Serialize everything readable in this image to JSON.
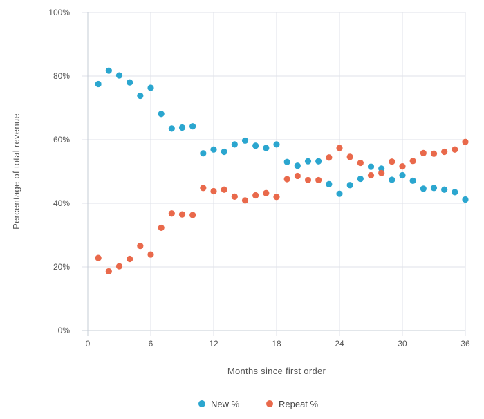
{
  "chart_data": {
    "type": "scatter",
    "title": "",
    "xlabel": "Months since first order",
    "ylabel": "Percentage of total revenue",
    "xlim": [
      0,
      36
    ],
    "ylim": [
      0,
      100
    ],
    "x_ticks": [
      0,
      6,
      12,
      18,
      24,
      30,
      36
    ],
    "y_ticks": [
      0,
      20,
      40,
      60,
      80,
      100
    ],
    "y_tick_labels": [
      "0%",
      "20%",
      "40%",
      "60%",
      "80%",
      "100%"
    ],
    "legend_position": "bottom",
    "series": [
      {
        "name": "New %",
        "color": "#2ba6cf",
        "x": [
          1,
          2,
          3,
          4,
          5,
          6,
          7,
          8,
          9,
          10,
          11,
          12,
          13,
          14,
          15,
          16,
          17,
          18,
          19,
          20,
          21,
          22,
          23,
          24,
          25,
          26,
          27,
          28,
          29,
          30,
          31,
          32,
          33,
          34,
          35,
          36
        ],
        "values": [
          77.5,
          81.7,
          80.2,
          78,
          73.8,
          76.3,
          68.1,
          63.5,
          63.8,
          64.2,
          55.7,
          56.9,
          56.2,
          58.5,
          59.7,
          58.1,
          57.4,
          58.5,
          53,
          51.8,
          53.2,
          53.2,
          46,
          43,
          45.7,
          47.7,
          51.5,
          50.9,
          47.4,
          48.8,
          47.1,
          44.6,
          44.8,
          44.3,
          43.5,
          41.2
        ]
      },
      {
        "name": "Repeat %",
        "color": "#e9694b",
        "x": [
          1,
          2,
          3,
          4,
          5,
          6,
          7,
          8,
          9,
          10,
          11,
          12,
          13,
          14,
          15,
          16,
          17,
          18,
          19,
          20,
          21,
          22,
          23,
          24,
          25,
          26,
          27,
          28,
          29,
          30,
          31,
          32,
          33,
          34,
          35,
          36
        ],
        "values": [
          22.8,
          18.6,
          20.2,
          22.5,
          26.6,
          23.9,
          32.3,
          36.8,
          36.5,
          36.3,
          44.8,
          43.8,
          44.3,
          42.1,
          40.9,
          42.5,
          43.2,
          42,
          47.6,
          48.6,
          47.3,
          47.3,
          54.4,
          57.4,
          54.6,
          52.7,
          48.8,
          49.5,
          53.1,
          51.6,
          53.3,
          55.8,
          55.6,
          56.2,
          56.9,
          59.3
        ]
      }
    ]
  }
}
